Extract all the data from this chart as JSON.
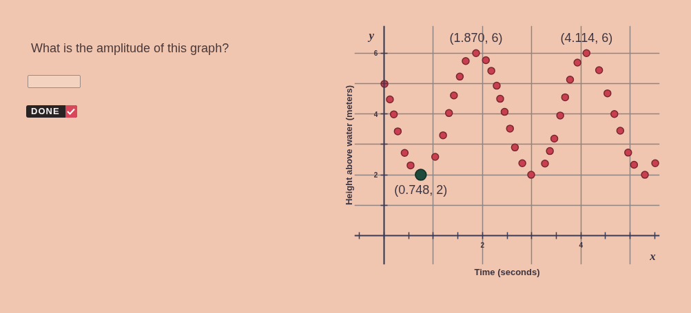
{
  "chart_data": {
    "type": "scatter",
    "title": "What is the amplitude of this graph?",
    "xlabel": "Time (seconds)",
    "ylabel": "Height above water (meters)",
    "annotations": [
      {
        "text": "(1.870, 6)",
        "x": 1.87,
        "y": 6
      },
      {
        "text": "(4.114, 6)",
        "x": 4.114,
        "y": 6
      },
      {
        "text": "(0.748, 2)",
        "x": 0.748,
        "y": 2
      },
      "y",
      "x",
      "DONE"
    ],
    "series": [
      {
        "color": "#c8404f",
        "x": [
          0.01,
          0.12,
          0.2,
          0.28,
          0.42,
          0.54,
          1.04,
          1.2,
          1.32,
          1.42,
          1.54,
          1.66,
          1.87,
          2.07,
          2.18,
          2.29,
          2.36,
          2.45,
          2.56,
          2.66,
          2.81,
          2.99,
          3.27,
          3.37,
          3.46,
          3.58,
          3.68,
          3.78,
          3.93,
          4.114,
          4.37,
          4.54,
          4.68,
          4.8,
          4.96,
          5.08,
          5.3,
          5.51
        ],
        "values": [
          4.99,
          4.48,
          3.99,
          3.43,
          2.72,
          2.31,
          2.59,
          3.3,
          4.03,
          4.61,
          5.23,
          5.74,
          6,
          5.77,
          5.42,
          4.93,
          4.5,
          4.07,
          3.52,
          2.9,
          2.38,
          2.0,
          2.37,
          2.78,
          3.19,
          3.95,
          4.55,
          5.13,
          5.69,
          6,
          5.44,
          4.68,
          4.0,
          3.45,
          2.73,
          2.33,
          2.0,
          2.38
        ]
      },
      {
        "color": "#1d4a3a",
        "x": [
          0.748
        ],
        "values": [
          2
        ]
      }
    ],
    "xlim": [
      -0.6,
      5.6
    ],
    "ylim": [
      -0.95,
      6.9
    ],
    "xticks": [
      {
        "value": -0.5,
        "label": null
      },
      {
        "value": 0,
        "label": null
      },
      {
        "value": 0.5,
        "label": null
      },
      {
        "value": 1,
        "label": null
      },
      {
        "value": 1.5,
        "label": null
      },
      2,
      {
        "value": 2.5,
        "label": null
      },
      {
        "value": 3,
        "label": null
      },
      {
        "value": 3.5,
        "label": null
      },
      4,
      {
        "value": 4.5,
        "label": null
      },
      {
        "value": 5,
        "label": null
      },
      {
        "value": 5.5,
        "label": null
      }
    ],
    "yticks": [
      {
        "value": 1,
        "label": null
      },
      2,
      {
        "value": 3,
        "label": null
      },
      4,
      {
        "value": 5,
        "label": null
      },
      6
    ],
    "grid": true,
    "marker": "circle"
  }
}
